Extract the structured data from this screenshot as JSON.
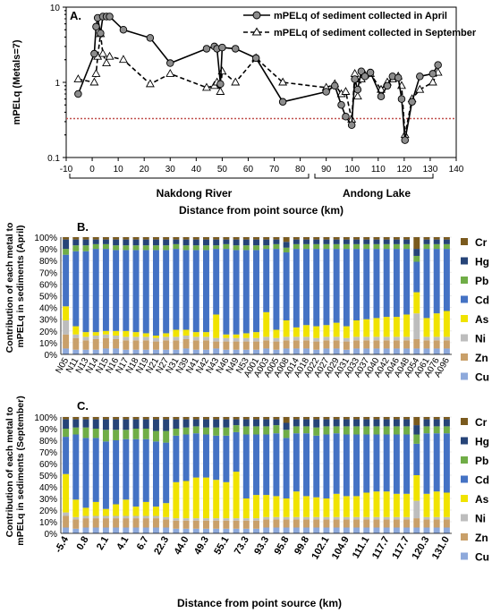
{
  "chart_data": [
    {
      "type": "line",
      "panel_label": "A.",
      "ylabel": "mPELq (Metals=7)",
      "xlabel": "Distance from point source (km)",
      "yscale": "log",
      "xlim": [
        -10,
        140
      ],
      "ylim": [
        0.1,
        10
      ],
      "x_ticks": [
        "-10",
        "0",
        "10",
        "20",
        "30",
        "40",
        "50",
        "60",
        "70",
        "80",
        "90",
        "100",
        "110",
        "120",
        "130",
        "140"
      ],
      "y_ticks": [
        "0.1",
        "1",
        "10"
      ],
      "reference_line": {
        "value": 0.33,
        "color": "#c0504d",
        "style": "dotted"
      },
      "regions": [
        {
          "label": "Nakdong River",
          "x_range": [
            -5,
            90
          ]
        },
        {
          "label": "Andong Lake",
          "x_range": [
            92,
            136
          ]
        }
      ],
      "series": [
        {
          "name": "mPELq of sediment collected in April",
          "style": "solid",
          "marker": "circle",
          "x": [
            -5.4,
            0.8,
            1.5,
            2.1,
            3.2,
            4.1,
            5.5,
            6.7,
            12,
            22.3,
            30,
            44,
            47,
            48,
            49.3,
            50,
            55.1,
            63,
            73.3,
            90,
            93.3,
            95.8,
            97.5,
            99.8,
            101,
            102.1,
            103.5,
            104.9,
            107,
            111.1,
            113.5,
            115.5,
            117.7,
            119,
            120.3,
            123,
            126,
            131,
            133
          ],
          "y": [
            0.7,
            2.4,
            5.5,
            7.2,
            4.5,
            7.5,
            7.5,
            7.5,
            5,
            3.9,
            1.8,
            2.8,
            3,
            2.8,
            0.95,
            2.9,
            2.8,
            2.1,
            0.55,
            0.75,
            0.9,
            0.5,
            0.35,
            0.27,
            1.1,
            0.8,
            1.4,
            1.2,
            1.35,
            0.65,
            0.9,
            1.2,
            1.15,
            0.6,
            0.17,
            0.55,
            1.2,
            1.3,
            1.7
          ]
        },
        {
          "name": "mPELq of sediment collected in September",
          "style": "dashed",
          "marker": "triangle",
          "x": [
            -5.4,
            0.8,
            1.5,
            2.1,
            3.2,
            4.1,
            5.5,
            6.7,
            12,
            22.3,
            30,
            44,
            47,
            48,
            49.3,
            50,
            55.1,
            63,
            73.3,
            90,
            93.3,
            95.8,
            97.5,
            99.8,
            101,
            102.1,
            103.5,
            104.9,
            107,
            111.1,
            113.5,
            115.5,
            117.7,
            119,
            120.3,
            123,
            126,
            131,
            133
          ],
          "y": [
            1.1,
            1,
            1.3,
            2.2,
            4.4,
            2.4,
            1.8,
            2.2,
            2,
            0.95,
            1.3,
            0.85,
            0.9,
            1.0,
            0.75,
            1.4,
            1.0,
            2.1,
            1.0,
            0.85,
            0.95,
            0.7,
            0.75,
            0.32,
            1.3,
            0.65,
            1.1,
            1.25,
            1.3,
            0.8,
            1.0,
            1.1,
            1.2,
            0.9,
            0.2,
            0.6,
            0.8,
            1.0,
            1.35
          ]
        }
      ]
    },
    {
      "type": "bar",
      "stacked": true,
      "normalized": true,
      "panel_label": "B.",
      "ylabel": "Contribution of each metal to mPELq in sediments (April)",
      "y_ticks": [
        "0%",
        "10%",
        "20%",
        "30%",
        "40%",
        "50%",
        "60%",
        "70%",
        "80%",
        "90%",
        "100%"
      ],
      "categories": [
        "N05",
        "N11",
        "N13",
        "N14",
        "N15",
        "N16",
        "N17",
        "N18",
        "N19",
        "N21",
        "N27",
        "N31",
        "N39",
        "N41",
        "N42",
        "N43",
        "N46",
        "N49",
        "N53",
        "A001",
        "A003",
        "A005",
        "A008",
        "A014",
        "A018",
        "A022",
        "A027",
        "A029",
        "A031",
        "A033",
        "A037",
        "A040",
        "A042",
        "A046",
        "A048",
        "A054",
        "A061",
        "A076",
        "A096"
      ],
      "legend": [
        "Cr",
        "Hg",
        "Pb",
        "Cd",
        "As",
        "Ni",
        "Zn",
        "Cu"
      ],
      "colors": {
        "Cu": "#8ea9db",
        "Zn": "#c9a06a",
        "Ni": "#bdbdbd",
        "As": "#f0e300",
        "Cd": "#4472c4",
        "Pb": "#70ad47",
        "Hg": "#264478",
        "Cr": "#7a5a1e"
      },
      "series": [
        {
          "name": "Cu",
          "values": [
            5,
            4,
            4,
            4,
            5,
            5,
            4,
            4,
            4,
            4,
            4,
            4,
            5,
            4,
            4,
            5,
            4,
            4,
            4,
            4,
            5,
            4,
            5,
            5,
            5,
            4,
            5,
            5,
            4,
            5,
            5,
            5,
            5,
            5,
            5,
            5,
            5,
            5,
            5
          ]
        },
        {
          "name": "Zn",
          "values": [
            12,
            10,
            8,
            9,
            9,
            8,
            8,
            8,
            8,
            7,
            8,
            8,
            8,
            8,
            8,
            6,
            7,
            7,
            7,
            7,
            7,
            7,
            7,
            7,
            7,
            7,
            7,
            7,
            7,
            7,
            7,
            7,
            7,
            7,
            7,
            8,
            7,
            7,
            7
          ]
        },
        {
          "name": "Ni",
          "values": [
            12,
            3,
            3,
            3,
            3,
            3,
            3,
            3,
            3,
            3,
            3,
            3,
            3,
            3,
            3,
            3,
            3,
            3,
            3,
            3,
            3,
            3,
            3,
            3,
            3,
            3,
            3,
            3,
            3,
            3,
            3,
            3,
            3,
            3,
            3,
            22,
            3,
            3,
            3
          ]
        },
        {
          "name": "As",
          "values": [
            12,
            7,
            4,
            3,
            3,
            4,
            5,
            4,
            3,
            2,
            3,
            6,
            5,
            4,
            4,
            20,
            3,
            3,
            4,
            5,
            21,
            7,
            14,
            8,
            10,
            10,
            10,
            12,
            10,
            14,
            15,
            16,
            17,
            17,
            19,
            18,
            16,
            20,
            22
          ]
        },
        {
          "name": "Cd",
          "values": [
            44,
            64,
            69,
            71,
            70,
            69,
            69,
            70,
            71,
            73,
            71,
            69,
            68,
            70,
            70,
            56,
            73,
            72,
            71,
            70,
            54,
            69,
            58,
            67,
            65,
            66,
            65,
            63,
            66,
            61,
            60,
            59,
            58,
            58,
            56,
            26,
            59,
            55,
            53
          ]
        },
        {
          "name": "Pb",
          "values": [
            5,
            5,
            5,
            4,
            4,
            4,
            4,
            4,
            4,
            4,
            4,
            4,
            4,
            4,
            4,
            3,
            4,
            4,
            4,
            4,
            3,
            4,
            4,
            4,
            4,
            4,
            4,
            4,
            4,
            4,
            4,
            4,
            4,
            4,
            4,
            5,
            4,
            4,
            4
          ]
        },
        {
          "name": "Hg",
          "values": [
            8,
            5,
            5,
            4,
            4,
            5,
            5,
            5,
            5,
            5,
            5,
            4,
            5,
            5,
            5,
            5,
            4,
            5,
            5,
            5,
            5,
            4,
            5,
            4,
            4,
            4,
            4,
            4,
            4,
            4,
            4,
            4,
            4,
            4,
            4,
            6,
            4,
            4,
            4
          ]
        },
        {
          "name": "Cr",
          "values": [
            2,
            2,
            2,
            2,
            2,
            2,
            2,
            2,
            2,
            2,
            2,
            2,
            2,
            2,
            2,
            2,
            2,
            2,
            2,
            2,
            2,
            2,
            4,
            2,
            2,
            2,
            2,
            2,
            2,
            2,
            2,
            2,
            2,
            2,
            2,
            10,
            2,
            2,
            2
          ]
        }
      ]
    },
    {
      "type": "bar",
      "stacked": true,
      "normalized": true,
      "panel_label": "C.",
      "ylabel": "Contribution of each metal to mPELq in sediments (September)",
      "xlabel": "Distance from point source (km)",
      "y_ticks": [
        "0%",
        "10%",
        "20%",
        "30%",
        "40%",
        "50%",
        "60%",
        "70%",
        "80%",
        "90%",
        "100%"
      ],
      "categories": [
        "-5.4",
        "",
        "0.8",
        "",
        "2.1",
        "",
        "4.1",
        "",
        "6.7",
        "",
        "22.3",
        "",
        "44.0",
        "",
        "49.3",
        "",
        "55.1",
        "",
        "73.3",
        "",
        "93.3",
        "",
        "95.8",
        "",
        "99.8",
        "",
        "102.1",
        "",
        "104.9",
        "",
        "111.1",
        "",
        "117.7",
        "",
        "117.7",
        "",
        "120.3",
        "",
        "131.0"
      ],
      "legend": [
        "Cr",
        "Hg",
        "Pb",
        "Cd",
        "As",
        "Ni",
        "Zn",
        "Cu"
      ],
      "colors": {
        "Cu": "#8ea9db",
        "Zn": "#c9a06a",
        "Ni": "#bdbdbd",
        "As": "#f0e300",
        "Cd": "#4472c4",
        "Pb": "#70ad47",
        "Hg": "#264478",
        "Cr": "#7a5a1e"
      },
      "series": [
        {
          "name": "Cu",
          "values": [
            5,
            4,
            5,
            5,
            5,
            5,
            5,
            5,
            5,
            5,
            5,
            4,
            4,
            4,
            4,
            4,
            4,
            4,
            4,
            4,
            5,
            5,
            5,
            5,
            5,
            5,
            5,
            5,
            5,
            5,
            5,
            5,
            5,
            5,
            5,
            5,
            5,
            5,
            5
          ]
        },
        {
          "name": "Zn",
          "values": [
            10,
            8,
            8,
            8,
            8,
            8,
            8,
            8,
            8,
            8,
            7,
            7,
            7,
            7,
            7,
            7,
            7,
            7,
            7,
            7,
            7,
            7,
            7,
            7,
            7,
            7,
            7,
            7,
            7,
            7,
            7,
            7,
            7,
            7,
            7,
            8,
            7,
            7,
            7
          ]
        },
        {
          "name": "Ni",
          "values": [
            3,
            2,
            2,
            2,
            2,
            2,
            2,
            2,
            2,
            2,
            2,
            2,
            2,
            2,
            2,
            2,
            2,
            2,
            2,
            2,
            2,
            2,
            2,
            2,
            2,
            2,
            2,
            2,
            2,
            2,
            2,
            2,
            2,
            2,
            2,
            15,
            2,
            2,
            2
          ]
        },
        {
          "name": "As",
          "values": [
            33,
            15,
            7,
            12,
            6,
            10,
            14,
            8,
            12,
            8,
            12,
            31,
            32,
            35,
            35,
            33,
            31,
            40,
            17,
            20,
            19,
            18,
            16,
            22,
            18,
            17,
            16,
            20,
            18,
            18,
            21,
            22,
            22,
            20,
            20,
            22,
            20,
            22,
            21
          ]
        },
        {
          "name": "Cd",
          "values": [
            32,
            56,
            60,
            55,
            58,
            55,
            52,
            58,
            54,
            56,
            52,
            40,
            40,
            38,
            37,
            38,
            40,
            34,
            55,
            52,
            52,
            54,
            52,
            50,
            54,
            53,
            55,
            52,
            53,
            53,
            50,
            49,
            49,
            51,
            51,
            27,
            52,
            50,
            51
          ]
        },
        {
          "name": "Pb",
          "values": [
            7,
            6,
            9,
            8,
            10,
            9,
            8,
            9,
            9,
            9,
            10,
            6,
            6,
            6,
            6,
            7,
            7,
            6,
            7,
            7,
            7,
            7,
            7,
            6,
            6,
            7,
            7,
            6,
            7,
            7,
            7,
            7,
            7,
            7,
            7,
            8,
            6,
            6,
            6
          ]
        },
        {
          "name": "Hg",
          "values": [
            8,
            7,
            7,
            8,
            9,
            9,
            9,
            8,
            8,
            10,
            10,
            8,
            7,
            6,
            7,
            7,
            7,
            5,
            6,
            6,
            6,
            5,
            6,
            6,
            6,
            7,
            6,
            6,
            6,
            6,
            6,
            6,
            6,
            6,
            6,
            8,
            6,
            6,
            6
          ]
        },
        {
          "name": "Cr",
          "values": [
            2,
            2,
            2,
            2,
            2,
            2,
            2,
            2,
            2,
            2,
            2,
            2,
            2,
            2,
            2,
            2,
            2,
            2,
            2,
            2,
            2,
            2,
            5,
            2,
            2,
            2,
            2,
            2,
            2,
            2,
            2,
            2,
            2,
            2,
            2,
            7,
            2,
            2,
            2
          ]
        }
      ]
    }
  ]
}
